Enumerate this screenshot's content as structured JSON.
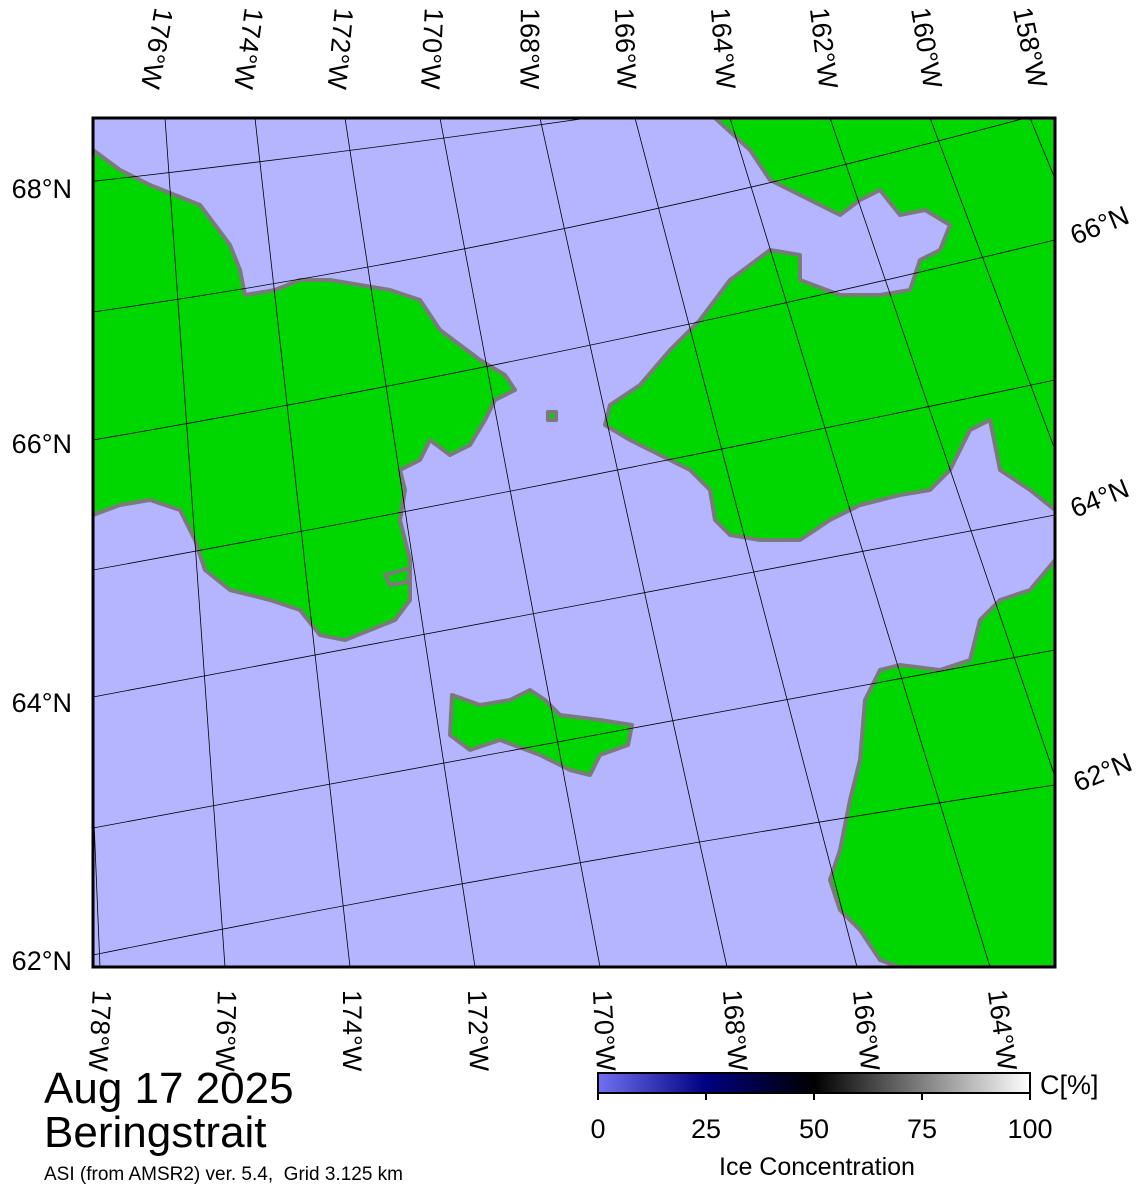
{
  "map": {
    "top_lon_labels": [
      "176°W",
      "174°W",
      "172°W",
      "170°W",
      "168°W",
      "166°W",
      "164°W",
      "162°W",
      "160°W",
      "158°W"
    ],
    "bottom_lon_labels": [
      "178°W",
      "176°W",
      "174°W",
      "172°W",
      "170°W",
      "168°W",
      "166°W",
      "164°W"
    ],
    "left_lat_labels": [
      "68°N",
      "66°N",
      "64°N",
      "62°N"
    ],
    "right_lat_labels": [
      "66°N",
      "64°N",
      "62°N"
    ],
    "date": "Aug 17 2025",
    "region": "Beringstrait",
    "source": "ASI (from AMSR2) ver. 5.4,  Grid 3.125 km"
  },
  "colorbar": {
    "range": [
      0,
      100
    ],
    "ticks": [
      0,
      25,
      50,
      75,
      100
    ],
    "unit": "C[%]",
    "title": "Ice Concentration"
  }
}
